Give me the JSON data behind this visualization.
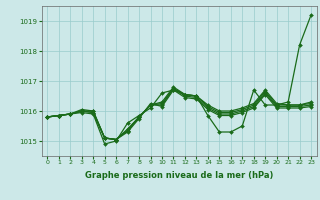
{
  "xlabel": "Graphe pression niveau de la mer (hPa)",
  "bg_color": "#cce8e8",
  "grid_color": "#99cccc",
  "line_color": "#1a6b1a",
  "marker_color": "#1a6b1a",
  "ylim": [
    1014.5,
    1019.5
  ],
  "xlim": [
    -0.5,
    23.5
  ],
  "yticks": [
    1015,
    1016,
    1017,
    1018,
    1019
  ],
  "xticks": [
    0,
    1,
    2,
    3,
    4,
    5,
    6,
    7,
    8,
    9,
    10,
    11,
    12,
    13,
    14,
    15,
    16,
    17,
    18,
    19,
    20,
    21,
    22,
    23
  ],
  "series": [
    [
      1015.8,
      1015.85,
      1015.9,
      1015.95,
      1015.9,
      1014.9,
      1015.0,
      1015.6,
      1015.85,
      1016.1,
      1016.6,
      1016.7,
      1016.55,
      1016.5,
      1015.85,
      1015.3,
      1015.3,
      1015.5,
      1016.7,
      1016.2,
      1016.2,
      1016.3,
      1018.2,
      1019.2
    ],
    [
      1015.8,
      1015.85,
      1015.9,
      1016.0,
      1016.0,
      1015.1,
      1015.05,
      1015.4,
      1015.8,
      1016.2,
      1016.3,
      1016.8,
      1016.55,
      1016.5,
      1016.2,
      1016.0,
      1016.0,
      1016.1,
      1016.25,
      1016.7,
      1016.25,
      1016.2,
      1016.2,
      1016.3
    ],
    [
      1015.8,
      1015.85,
      1015.9,
      1016.0,
      1015.95,
      1015.1,
      1015.05,
      1015.35,
      1015.8,
      1016.2,
      1016.25,
      1016.75,
      1016.55,
      1016.5,
      1016.15,
      1015.95,
      1015.95,
      1016.05,
      1016.2,
      1016.65,
      1016.2,
      1016.2,
      1016.2,
      1016.25
    ],
    [
      1015.8,
      1015.85,
      1015.9,
      1016.0,
      1015.95,
      1015.1,
      1015.05,
      1015.35,
      1015.8,
      1016.2,
      1016.2,
      1016.75,
      1016.5,
      1016.45,
      1016.1,
      1015.9,
      1015.9,
      1016.0,
      1016.15,
      1016.6,
      1016.15,
      1016.15,
      1016.15,
      1016.2
    ],
    [
      1015.8,
      1015.85,
      1015.9,
      1016.05,
      1016.0,
      1015.1,
      1015.05,
      1015.3,
      1015.75,
      1016.25,
      1016.15,
      1016.7,
      1016.45,
      1016.4,
      1016.05,
      1015.85,
      1015.85,
      1015.95,
      1016.1,
      1016.55,
      1016.1,
      1016.1,
      1016.1,
      1016.15
    ]
  ]
}
